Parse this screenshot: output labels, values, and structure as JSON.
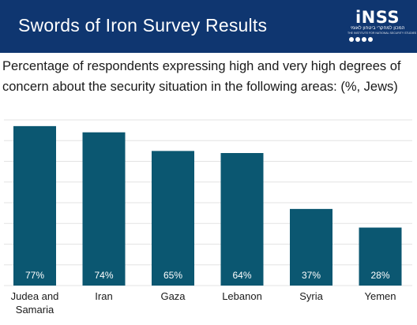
{
  "header": {
    "title": "Swords of Iron Survey Results",
    "logo_text": "iNSS",
    "logo_subtitle": "המכון למחקרי ביטחון לאומי",
    "logo_subtitle_en": "THE INSTITUTE FOR NATIONAL SECURITY STUDIES"
  },
  "colors": {
    "header_bg": "#0f3670",
    "bar": "#0b5771",
    "grid": "#e3e3e3"
  },
  "chart_data": {
    "type": "bar",
    "title": "Percentage of respondents expressing high and very high degrees of concern about the security situation in the following areas: (%, Jews)",
    "categories": [
      "Judea and Samaria",
      "Iran",
      "Gaza",
      "Lebanon",
      "Syria",
      "Yemen"
    ],
    "values": [
      77,
      74,
      65,
      64,
      37,
      28
    ],
    "value_labels": [
      "77%",
      "74%",
      "65%",
      "64%",
      "37%",
      "28%"
    ],
    "ylim": [
      0,
      80
    ],
    "grid": true
  }
}
